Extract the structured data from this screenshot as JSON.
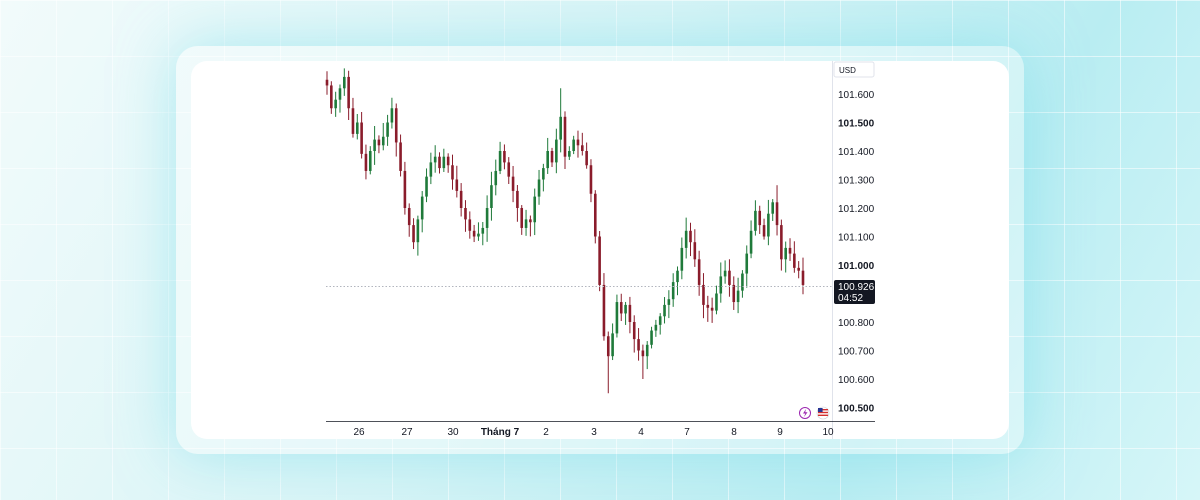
{
  "chart_data": {
    "type": "candlestick",
    "currency": "USD",
    "price_labels": [
      "101.600",
      "101.500",
      "101.400",
      "101.300",
      "101.200",
      "101.100",
      "101.000",
      "100.800",
      "100.700",
      "100.600",
      "100.500"
    ],
    "date_labels": [
      "26",
      "27",
      "30",
      "Tháng 7",
      "2",
      "3",
      "4",
      "7",
      "8",
      "9",
      "10"
    ],
    "ylim": [
      100.47,
      101.68
    ],
    "current_price": "100.926",
    "countdown": "04:52",
    "colors": {
      "up": "#1f7a3a",
      "down": "#8a1c2b",
      "axis": "#131722",
      "grid_line": "#b2b5be"
    },
    "icons": [
      "lightning-icon",
      "us-flag-icon"
    ],
    "closes": [
      101.63,
      101.55,
      101.58,
      101.62,
      101.66,
      101.55,
      101.46,
      101.5,
      101.39,
      101.33,
      101.4,
      101.44,
      101.42,
      101.45,
      101.5,
      101.55,
      101.43,
      101.33,
      101.2,
      101.14,
      101.08,
      101.16,
      101.24,
      101.31,
      101.36,
      101.38,
      101.34,
      101.38,
      101.35,
      101.3,
      101.26,
      101.2,
      101.16,
      101.12,
      101.1,
      101.11,
      101.13,
      101.2,
      101.28,
      101.33,
      101.4,
      101.36,
      101.31,
      101.26,
      101.2,
      101.13,
      101.16,
      101.15,
      101.24,
      101.3,
      101.34,
      101.4,
      101.36,
      101.44,
      101.52,
      101.38,
      101.4,
      101.44,
      101.42,
      101.4,
      101.35,
      101.25,
      101.1,
      100.93,
      100.75,
      100.68,
      100.76,
      100.87,
      100.83,
      100.86,
      100.8,
      100.74,
      100.7,
      100.68,
      100.72,
      100.77,
      100.79,
      100.82,
      100.86,
      100.88,
      100.94,
      100.98,
      101.06,
      101.12,
      101.08,
      101.02,
      100.93,
      100.86,
      100.85,
      100.84,
      100.9,
      100.96,
      100.98,
      100.93,
      100.87,
      100.91,
      100.97,
      101.04,
      101.12,
      101.19,
      101.14,
      101.1,
      101.18,
      101.22,
      101.14,
      101.02,
      101.06,
      101.04,
      100.99,
      100.98,
      100.93
    ]
  }
}
